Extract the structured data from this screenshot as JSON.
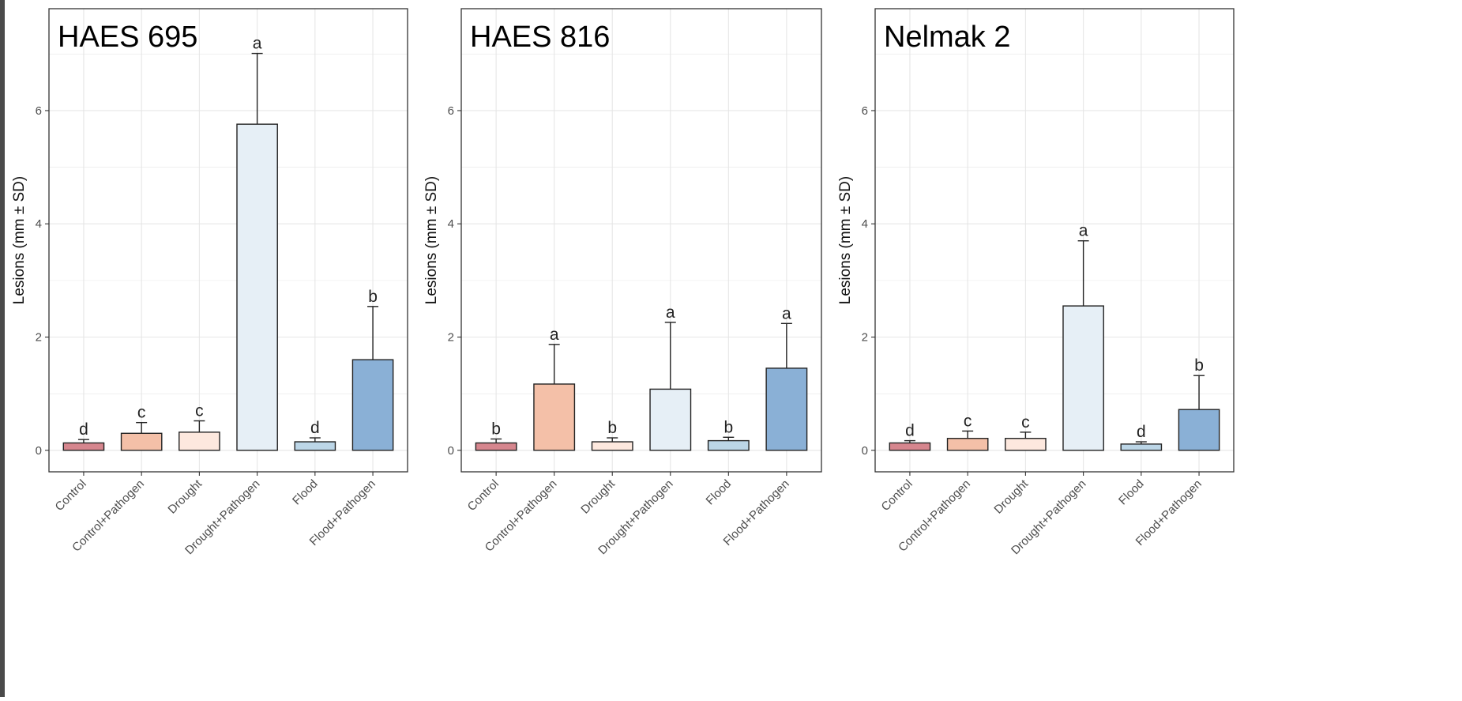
{
  "chart_data": [
    {
      "type": "bar",
      "title": "HAES 695",
      "xlabel": "",
      "ylabel": "Lesions (mm ± SD)",
      "ylim": [
        -0.38,
        7.8
      ],
      "yticks": [
        0,
        2,
        4,
        6
      ],
      "grid": true,
      "categories": [
        "Control",
        "Control+Pathogen",
        "Drought",
        "Drought+Pathogen",
        "Flood",
        "Flood+Pathogen"
      ],
      "values": [
        0.13,
        0.3,
        0.32,
        5.76,
        0.15,
        1.6
      ],
      "errors": [
        0.06,
        0.19,
        0.2,
        1.25,
        0.07,
        0.94
      ],
      "letters": [
        "d",
        "c",
        "c",
        "a",
        "d",
        "b"
      ]
    },
    {
      "type": "bar",
      "title": "HAES 816",
      "xlabel": "",
      "ylabel": "Lesions (mm ± SD)",
      "ylim": [
        -0.38,
        7.8
      ],
      "yticks": [
        0,
        2,
        4,
        6
      ],
      "grid": true,
      "categories": [
        "Control",
        "Control+Pathogen",
        "Drought",
        "Drought+Pathogen",
        "Flood",
        "Flood+Pathogen"
      ],
      "values": [
        0.13,
        1.17,
        0.15,
        1.08,
        0.17,
        1.45
      ],
      "errors": [
        0.07,
        0.7,
        0.07,
        1.18,
        0.06,
        0.79
      ],
      "letters": [
        "b",
        "a",
        "b",
        "a",
        "b",
        "a"
      ]
    },
    {
      "type": "bar",
      "title": "Nelmak 2",
      "xlabel": "",
      "ylabel": "Lesions (mm ± SD)",
      "ylim": [
        -0.38,
        7.8
      ],
      "yticks": [
        0,
        2,
        4,
        6
      ],
      "grid": true,
      "categories": [
        "Control",
        "Control+Pathogen",
        "Drought",
        "Drought+Pathogen",
        "Flood",
        "Flood+Pathogen"
      ],
      "values": [
        0.13,
        0.21,
        0.21,
        2.55,
        0.11,
        0.72
      ],
      "errors": [
        0.04,
        0.13,
        0.11,
        1.15,
        0.04,
        0.6
      ],
      "letters": [
        "d",
        "c",
        "c",
        "a",
        "d",
        "b"
      ]
    }
  ],
  "colors": {
    "bars": [
      "#d6868e",
      "#f4c0a8",
      "#fde8de",
      "#e6eff6",
      "#bcd6e7",
      "#8ab0d6"
    ],
    "grid": "#e6e6e6",
    "panel_border": "#333333",
    "axis_text": "#4d4d4d"
  }
}
